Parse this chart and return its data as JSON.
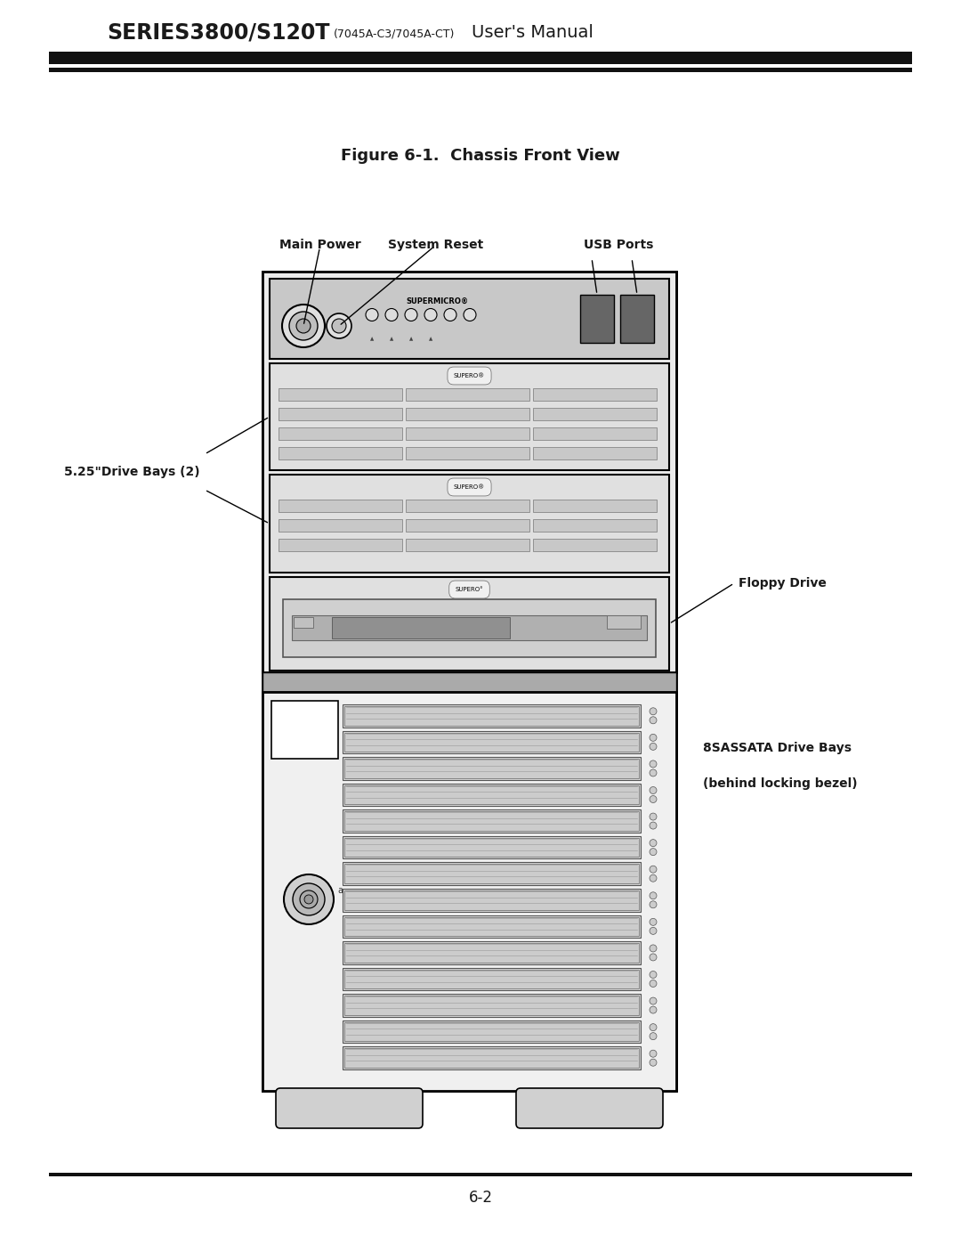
{
  "bg_color": "#ffffff",
  "title_main": "SERIES3800/S120T",
  "title_sub": "(7045A-C3/7045A-CT)",
  "title_rest": "User's Manual",
  "figure_title": "Figure 6-1.  Chassis Front View",
  "page_number": "6-2",
  "label_main_power": "Main Power",
  "label_system_reset": "System Reset",
  "label_usb_ports": "USB Ports",
  "label_drive_bays": "5.25\"Drive Bays (2)",
  "label_floppy": "Floppy Drive",
  "label_sas": "8SASSATA Drive Bays",
  "label_locking": "(behind locking bezel)",
  "line_color": "#000000",
  "text_color": "#1a1a1a",
  "chassis_fill": "#f0f0f0",
  "panel_fill": "#d0d0d0",
  "bay_fill": "#e8e8e8",
  "dark_fill": "#888888"
}
